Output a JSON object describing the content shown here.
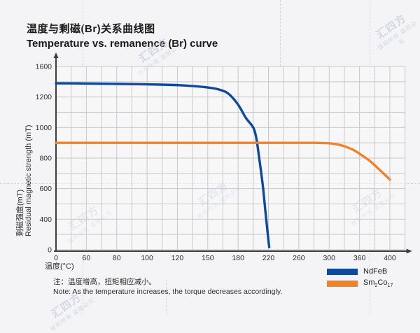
{
  "header": {
    "title_cn": "温度与剩磁(Br)关系曲线图",
    "title_en": "Temperature vs. remanence (Br) curve"
  },
  "chart_data": {
    "type": "line",
    "title": "Temperature vs. remanence (Br) curve",
    "xlabel": "温度(°C)",
    "ylabel_cn": "剩磁强度(mT)",
    "ylabel_en": "Residual magnetic strength (mT)",
    "x_ticks": [
      0,
      60,
      80,
      100,
      120,
      150,
      180,
      220,
      260,
      300,
      360,
      400
    ],
    "y_ticks": [
      0,
      400,
      600,
      800,
      1000,
      1200,
      1600
    ],
    "grid": true,
    "legend_position": "bottom-right",
    "scale_note": "tick labels equally spaced (non-linear value scale)",
    "series": [
      {
        "name": "NdFeB",
        "color": "#0d4a9c",
        "points": [
          [
            0,
            1380
          ],
          [
            40,
            1378
          ],
          [
            80,
            1372
          ],
          [
            100,
            1366
          ],
          [
            120,
            1356
          ],
          [
            135,
            1344
          ],
          [
            150,
            1325
          ],
          [
            160,
            1302
          ],
          [
            170,
            1248
          ],
          [
            180,
            1150
          ],
          [
            190,
            1065
          ],
          [
            200,
            1000
          ],
          [
            204,
            930
          ],
          [
            207,
            830
          ],
          [
            210,
            720
          ],
          [
            213,
            600
          ],
          [
            216,
            450
          ],
          [
            218,
            310
          ],
          [
            220,
            120
          ],
          [
            221,
            35
          ]
        ]
      },
      {
        "name": "Sm2Co17",
        "color": "#f08228",
        "points": [
          [
            0,
            900
          ],
          [
            60,
            900
          ],
          [
            120,
            900
          ],
          [
            180,
            900
          ],
          [
            240,
            900
          ],
          [
            280,
            900
          ],
          [
            300,
            897
          ],
          [
            312,
            892
          ],
          [
            325,
            883
          ],
          [
            338,
            868
          ],
          [
            350,
            850
          ],
          [
            362,
            822
          ],
          [
            374,
            780
          ],
          [
            385,
            730
          ],
          [
            393,
            693
          ],
          [
            400,
            660
          ]
        ]
      }
    ]
  },
  "legend": {
    "items": [
      {
        "label": "NdFeB",
        "color": "#0d4a9c"
      },
      {
        "label_prefix": "Sm",
        "label_sub1": "2",
        "label_mid": "Co",
        "label_sub2": "17",
        "color": "#f08228"
      }
    ]
  },
  "note": {
    "line_cn": "注：温度增高，扭矩相应减小。",
    "line_en": "Note: As the temperature increases, the torque decreases accordingly."
  },
  "watermark": {
    "brand": "汇四方",
    "claim": "版权所有 盗图必究"
  },
  "colors": {
    "axis": "#3d3d3d",
    "grid": "#c7c7cc",
    "tick_text": "#2e2e2e",
    "plot_bg": "#fafafb",
    "page_bg": "#f4f4f6"
  }
}
